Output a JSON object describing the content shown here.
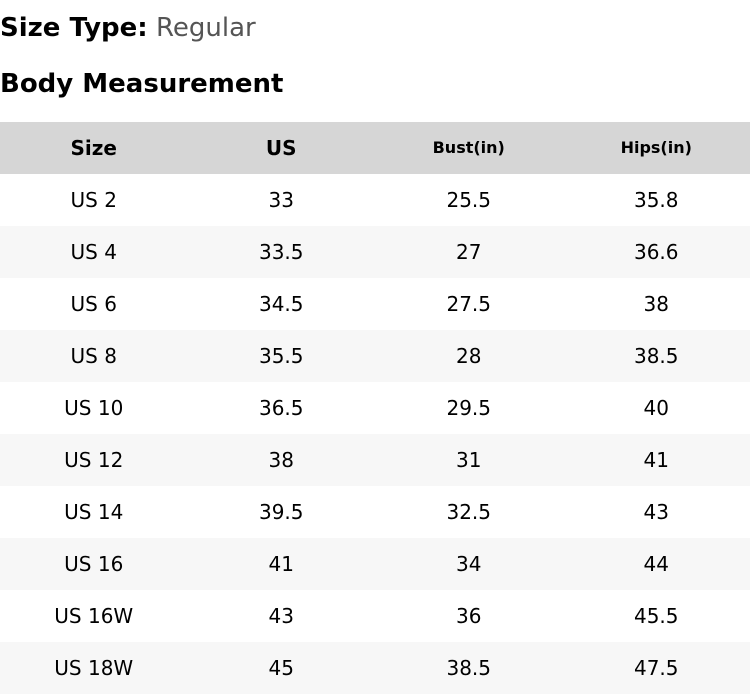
{
  "size_type": {
    "label": "Size Type:",
    "value": "Regular"
  },
  "section_title": "Body Measurement",
  "table": {
    "headers": [
      "Size",
      "US",
      "Bust(in)",
      "Hips(in)"
    ],
    "rows": [
      [
        "US 2",
        "33",
        "25.5",
        "35.8"
      ],
      [
        "US 4",
        "33.5",
        "27",
        "36.6"
      ],
      [
        "US 6",
        "34.5",
        "27.5",
        "38"
      ],
      [
        "US 8",
        "35.5",
        "28",
        "38.5"
      ],
      [
        "US 10",
        "36.5",
        "29.5",
        "40"
      ],
      [
        "US 12",
        "38",
        "31",
        "41"
      ],
      [
        "US 14",
        "39.5",
        "32.5",
        "43"
      ],
      [
        "US 16",
        "41",
        "34",
        "44"
      ],
      [
        "US 16W",
        "43",
        "36",
        "45.5"
      ],
      [
        "US 18W",
        "45",
        "38.5",
        "47.5"
      ]
    ]
  },
  "colors": {
    "header_bg": "#d6d6d6",
    "stripe_bg": "#f7f7f7",
    "value_gray": "#555555"
  }
}
